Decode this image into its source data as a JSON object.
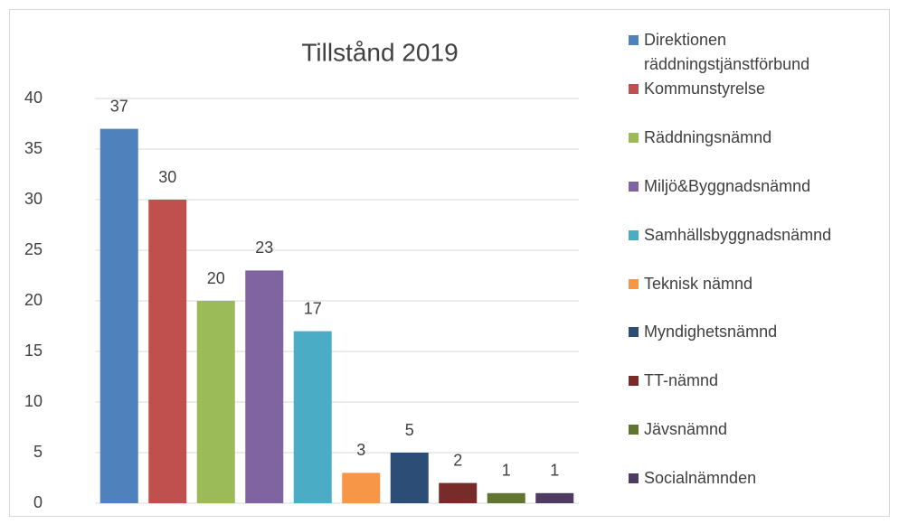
{
  "chart_data": {
    "type": "bar",
    "title": "Tillstånd 2019",
    "series": [
      {
        "name": "Direktionen räddningstjänstförbund",
        "color": "#4f81bd",
        "values": [
          37
        ]
      },
      {
        "name": "Kommunstyrelse",
        "color": "#c0504d",
        "values": [
          30
        ]
      },
      {
        "name": "Räddningsnämnd",
        "color": "#9bbb59",
        "values": [
          20
        ]
      },
      {
        "name": "Miljö&Byggnadsnämnd",
        "color": "#8064a2",
        "values": [
          23
        ]
      },
      {
        "name": "Samhällsbyggnadsnämnd",
        "color": "#4bacc6",
        "values": [
          17
        ]
      },
      {
        "name": "Teknisk nämnd",
        "color": "#f79646",
        "values": [
          3
        ]
      },
      {
        "name": "Myndighetsnämnd",
        "color": "#2c4d75",
        "values": [
          5
        ]
      },
      {
        "name": "TT-nämnd",
        "color": "#772c2a",
        "values": [
          2
        ]
      },
      {
        "name": "Jävsnämnd",
        "color": "#5f7530",
        "values": [
          1
        ]
      },
      {
        "name": "Socialnämnden",
        "color": "#4d3b62",
        "values": [
          1
        ]
      }
    ],
    "ylim": [
      0,
      40
    ],
    "yticks": [
      0,
      5,
      10,
      15,
      20,
      25,
      30,
      35,
      40
    ],
    "grid": true,
    "legend": "right"
  }
}
